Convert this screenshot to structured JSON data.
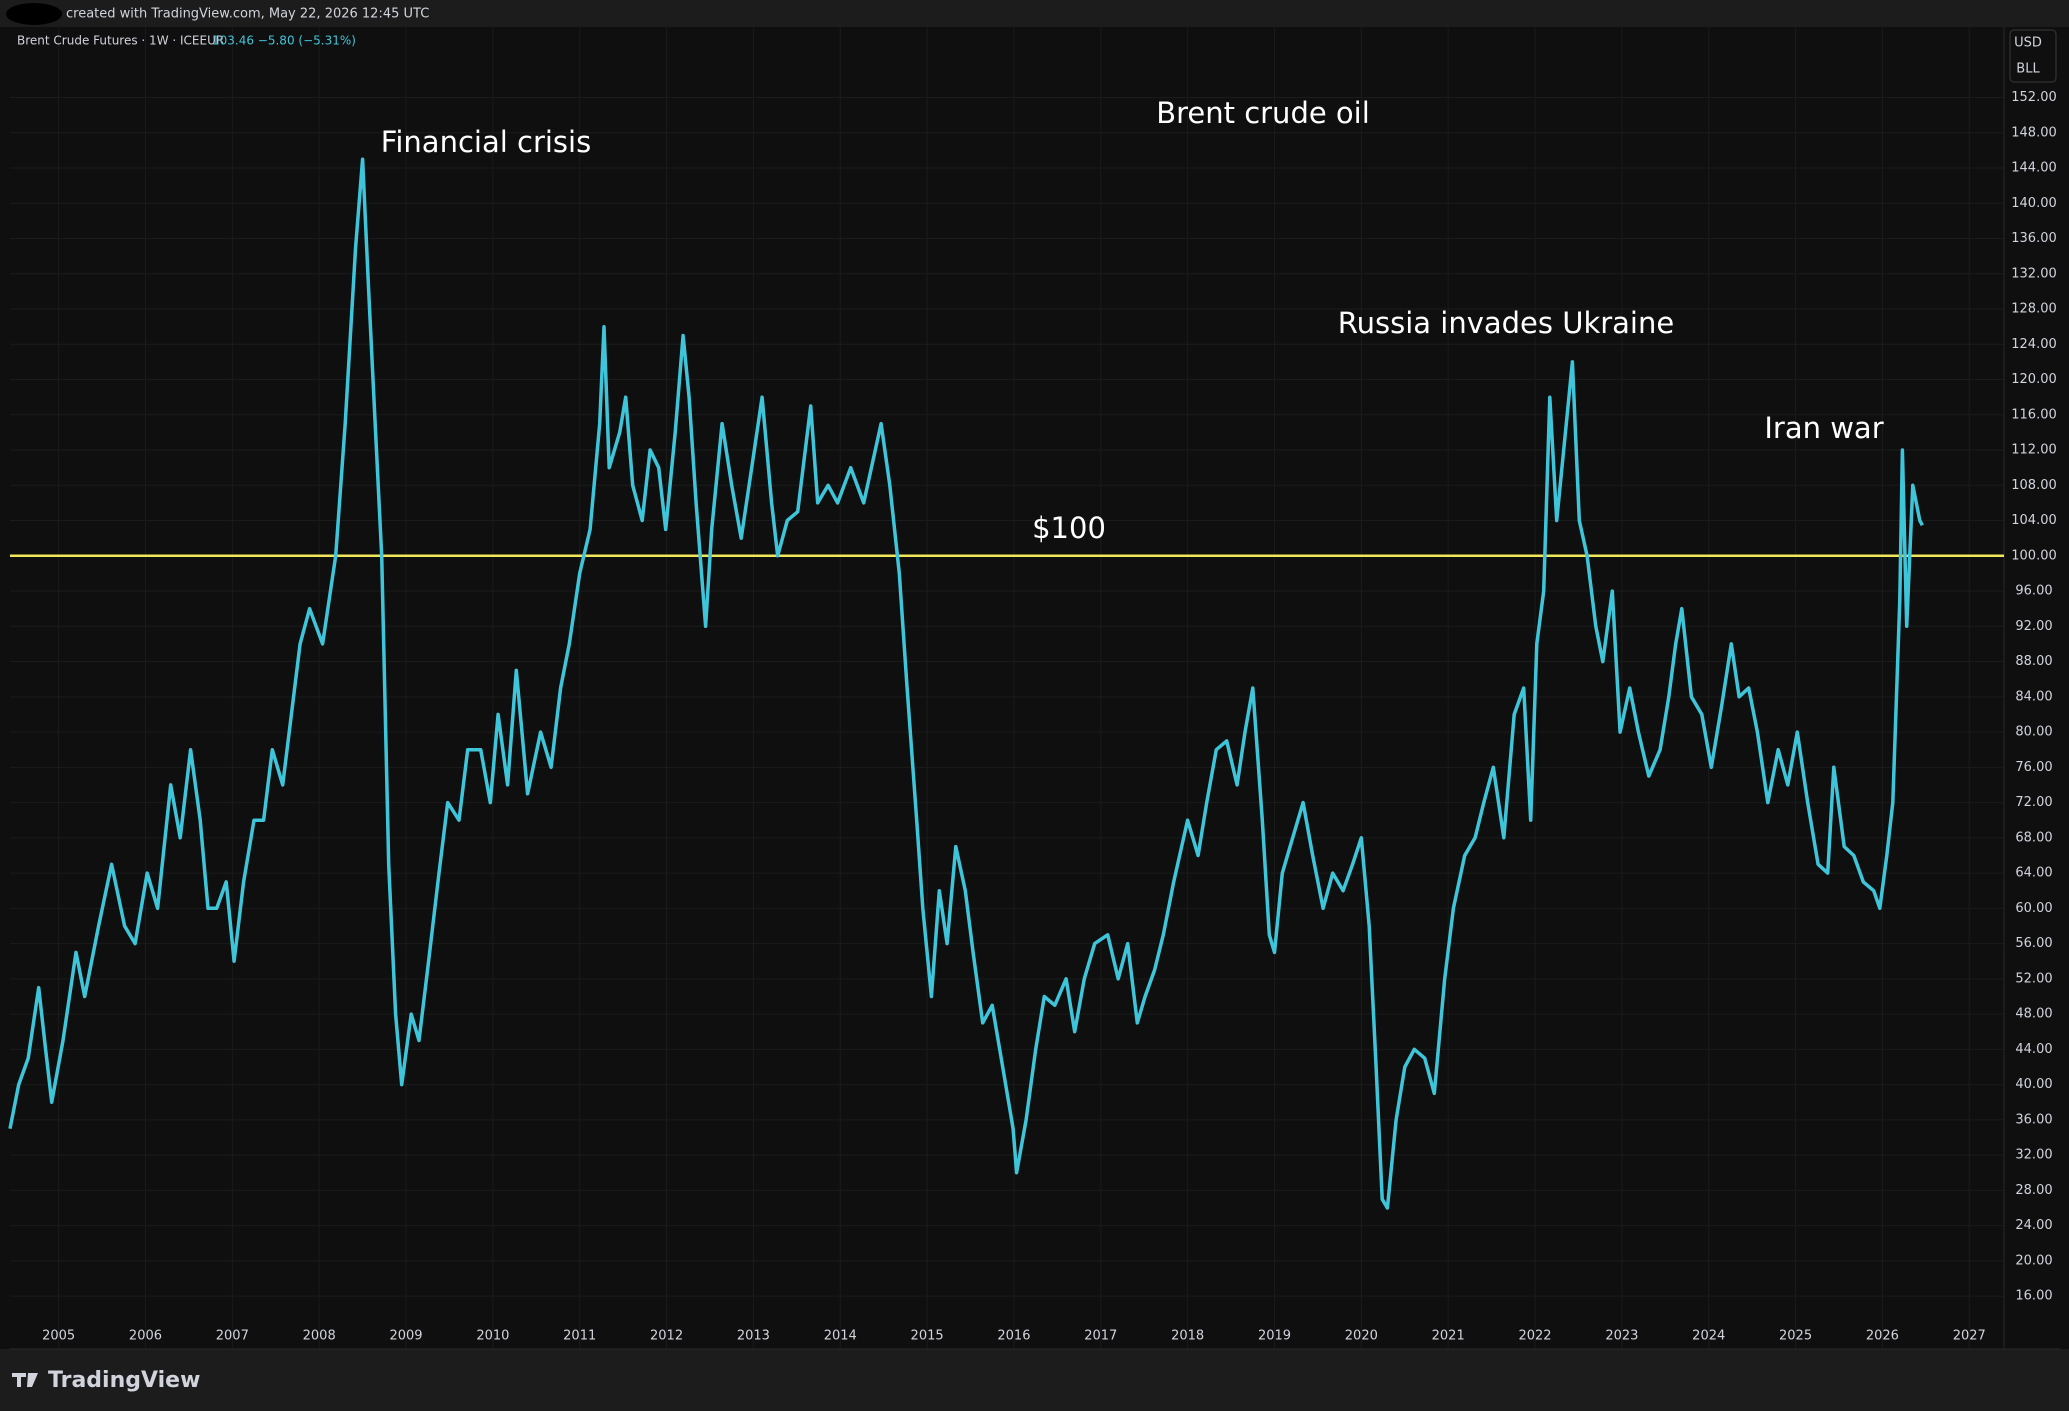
{
  "header": "created with TradingView.com, May 22, 2026 12:45 UTC",
  "legend": {
    "symbol": "Brent Crude Futures · 1W · ICEEUR",
    "quote": "103.46  −5.80 (−5.31%)"
  },
  "axis_unit": [
    "USD",
    "BLL"
  ],
  "brand": "TradingView",
  "chart_data": {
    "type": "line",
    "title": "Brent crude oil",
    "annotations": [
      "Financial crisis",
      "Russia invades Ukraine",
      "Iran war"
    ],
    "hline": {
      "value": 100,
      "label": "$100",
      "color": "#f2e75a"
    },
    "grid": true,
    "xlim": [
      2004.44,
      2027.4
    ],
    "ylim": [
      10,
      160
    ],
    "xticks": [
      2005,
      2006,
      2007,
      2008,
      2009,
      2010,
      2011,
      2012,
      2013,
      2014,
      2015,
      2016,
      2017,
      2018,
      2019,
      2020,
      2021,
      2022,
      2023,
      2024,
      2025,
      2026,
      2027
    ],
    "yticks": [
      {
        "value": 16,
        "label": "16.00"
      },
      {
        "value": 20,
        "label": "20.00"
      },
      {
        "value": 24,
        "label": "24.00"
      },
      {
        "value": 28,
        "label": "28.00"
      },
      {
        "value": 32,
        "label": "32.00"
      },
      {
        "value": 36,
        "label": "36.00"
      },
      {
        "value": 40,
        "label": "40.00"
      },
      {
        "value": 44,
        "label": "44.00"
      },
      {
        "value": 48,
        "label": "48.00"
      },
      {
        "value": 52,
        "label": "52.00"
      },
      {
        "value": 56,
        "label": "56.00"
      },
      {
        "value": 60,
        "label": "60.00"
      },
      {
        "value": 64,
        "label": "64.00"
      },
      {
        "value": 68,
        "label": "68.00"
      },
      {
        "value": 72,
        "label": "72.00"
      },
      {
        "value": 76,
        "label": "76.00"
      },
      {
        "value": 80,
        "label": "80.00"
      },
      {
        "value": 84,
        "label": "84.00"
      },
      {
        "value": 88,
        "label": "88.00"
      },
      {
        "value": 92,
        "label": "92.00"
      },
      {
        "value": 96,
        "label": "96.00"
      },
      {
        "value": 100,
        "label": "100.00"
      },
      {
        "value": 104,
        "label": "104.00"
      },
      {
        "value": 108,
        "label": "108.00"
      },
      {
        "value": 112,
        "label": "112.00"
      },
      {
        "value": 116,
        "label": "116.00"
      },
      {
        "value": 120,
        "label": "120.00"
      },
      {
        "value": 124,
        "label": "124.00"
      },
      {
        "value": 128,
        "label": "128.00"
      },
      {
        "value": 132,
        "label": "132.00"
      },
      {
        "value": 136,
        "label": "136.00"
      },
      {
        "value": 140,
        "label": "140.00"
      },
      {
        "value": 144,
        "label": "144.00"
      },
      {
        "value": 148,
        "label": "148.00"
      },
      {
        "value": 152,
        "label": "152.00"
      }
    ],
    "x": [
      2004.44,
      2004.54,
      2004.65,
      2004.77,
      2004.85,
      2004.92,
      2005.05,
      2005.2,
      2005.3,
      2005.46,
      2005.61,
      2005.76,
      2005.88,
      2006.02,
      2006.14,
      2006.29,
      2006.4,
      2006.52,
      2006.63,
      2006.72,
      2006.82,
      2006.93,
      2007.02,
      2007.13,
      2007.25,
      2007.36,
      2007.46,
      2007.58,
      2007.78,
      2007.89,
      2008.04,
      2008.19,
      2008.3,
      2008.42,
      2008.5,
      2008.57,
      2008.65,
      2008.72,
      2008.8,
      2008.88,
      2008.95,
      2009.06,
      2009.15,
      2009.26,
      2009.38,
      2009.48,
      2009.61,
      2009.71,
      2009.86,
      2009.97,
      2010.06,
      2010.17,
      2010.27,
      2010.4,
      2010.55,
      2010.67,
      2010.78,
      2010.88,
      2011.0,
      2011.12,
      2011.23,
      2011.28,
      2011.34,
      2011.46,
      2011.53,
      2011.61,
      2011.72,
      2011.81,
      2011.91,
      2011.99,
      2012.1,
      2012.19,
      2012.26,
      2012.34,
      2012.45,
      2012.52,
      2012.64,
      2012.75,
      2012.86,
      2012.98,
      2013.1,
      2013.21,
      2013.28,
      2013.39,
      2013.51,
      2013.66,
      2013.74,
      2013.86,
      2013.97,
      2014.12,
      2014.27,
      2014.47,
      2014.57,
      2014.68,
      2014.77,
      2014.88,
      2014.95,
      2015.05,
      2015.14,
      2015.23,
      2015.33,
      2015.44,
      2015.53,
      2015.64,
      2015.75,
      2015.87,
      2015.99,
      2016.03,
      2016.14,
      2016.25,
      2016.35,
      2016.47,
      2016.6,
      2016.7,
      2016.81,
      2016.93,
      2017.08,
      2017.2,
      2017.31,
      2017.42,
      2017.51,
      2017.62,
      2017.72,
      2017.84,
      2018.0,
      2018.12,
      2018.22,
      2018.33,
      2018.45,
      2018.57,
      2018.66,
      2018.75,
      2018.86,
      2018.94,
      2019.0,
      2019.09,
      2019.21,
      2019.33,
      2019.44,
      2019.56,
      2019.67,
      2019.79,
      2019.9,
      2020.0,
      2020.09,
      2020.17,
      2020.24,
      2020.3,
      2020.4,
      2020.5,
      2020.61,
      2020.73,
      2020.84,
      2020.96,
      2021.06,
      2021.19,
      2021.31,
      2021.41,
      2021.52,
      2021.64,
      2021.76,
      2021.87,
      2021.95,
      2022.02,
      2022.1,
      2022.17,
      2022.25,
      2022.33,
      2022.43,
      2022.51,
      2022.6,
      2022.7,
      2022.78,
      2022.89,
      2022.98,
      2023.09,
      2023.19,
      2023.31,
      2023.44,
      2023.54,
      2023.62,
      2023.69,
      2023.8,
      2023.92,
      2024.03,
      2024.15,
      2024.26,
      2024.35,
      2024.46,
      2024.56,
      2024.68,
      2024.8,
      2024.91,
      2025.02,
      2025.14,
      2025.26,
      2025.37,
      2025.44,
      2025.56,
      2025.67,
      2025.78,
      2025.9,
      2025.97,
      2026.05,
      2026.12,
      2026.2,
      2026.23,
      2026.28,
      2026.35,
      2026.43,
      2026.46
    ],
    "series": [
      {
        "name": "Brent Crude Futures",
        "color": "#3fc5da",
        "values": [
          35,
          40,
          43,
          51,
          44,
          38,
          45,
          55,
          50,
          58,
          65,
          58,
          56,
          64,
          60,
          74,
          68,
          78,
          70,
          60,
          60,
          63,
          54,
          63,
          70,
          70,
          78,
          74,
          90,
          94,
          90,
          100,
          115,
          135,
          145,
          130,
          114,
          100,
          65,
          48,
          40,
          48,
          45,
          54,
          64,
          72,
          70,
          78,
          78,
          72,
          82,
          74,
          87,
          73,
          80,
          76,
          85,
          90,
          98,
          103,
          115,
          126,
          110,
          114,
          118,
          108,
          104,
          112,
          110,
          103,
          114,
          125,
          118,
          106,
          92,
          103,
          115,
          108,
          102,
          110,
          118,
          106,
          100,
          104,
          105,
          117,
          106,
          108,
          106,
          110,
          106,
          115,
          108,
          98,
          85,
          70,
          60,
          50,
          62,
          56,
          67,
          62,
          55,
          47,
          49,
          42,
          35,
          30,
          36,
          44,
          50,
          49,
          52,
          46,
          52,
          56,
          57,
          52,
          56,
          47,
          50,
          53,
          57,
          63,
          70,
          66,
          72,
          78,
          79,
          74,
          80,
          85,
          70,
          57,
          55,
          64,
          68,
          72,
          66,
          60,
          64,
          62,
          65,
          68,
          58,
          42,
          27,
          26,
          36,
          42,
          44,
          43,
          39,
          52,
          60,
          66,
          68,
          72,
          76,
          68,
          82,
          85,
          70,
          90,
          96,
          118,
          104,
          112,
          122,
          104,
          100,
          92,
          88,
          96,
          80,
          85,
          80,
          75,
          78,
          84,
          90,
          94,
          84,
          82,
          76,
          83,
          90,
          84,
          85,
          80,
          72,
          78,
          74,
          80,
          72,
          65,
          64,
          76,
          67,
          66,
          63,
          62,
          60,
          66,
          72,
          95,
          112,
          92,
          108,
          104,
          103.46
        ]
      }
    ]
  }
}
